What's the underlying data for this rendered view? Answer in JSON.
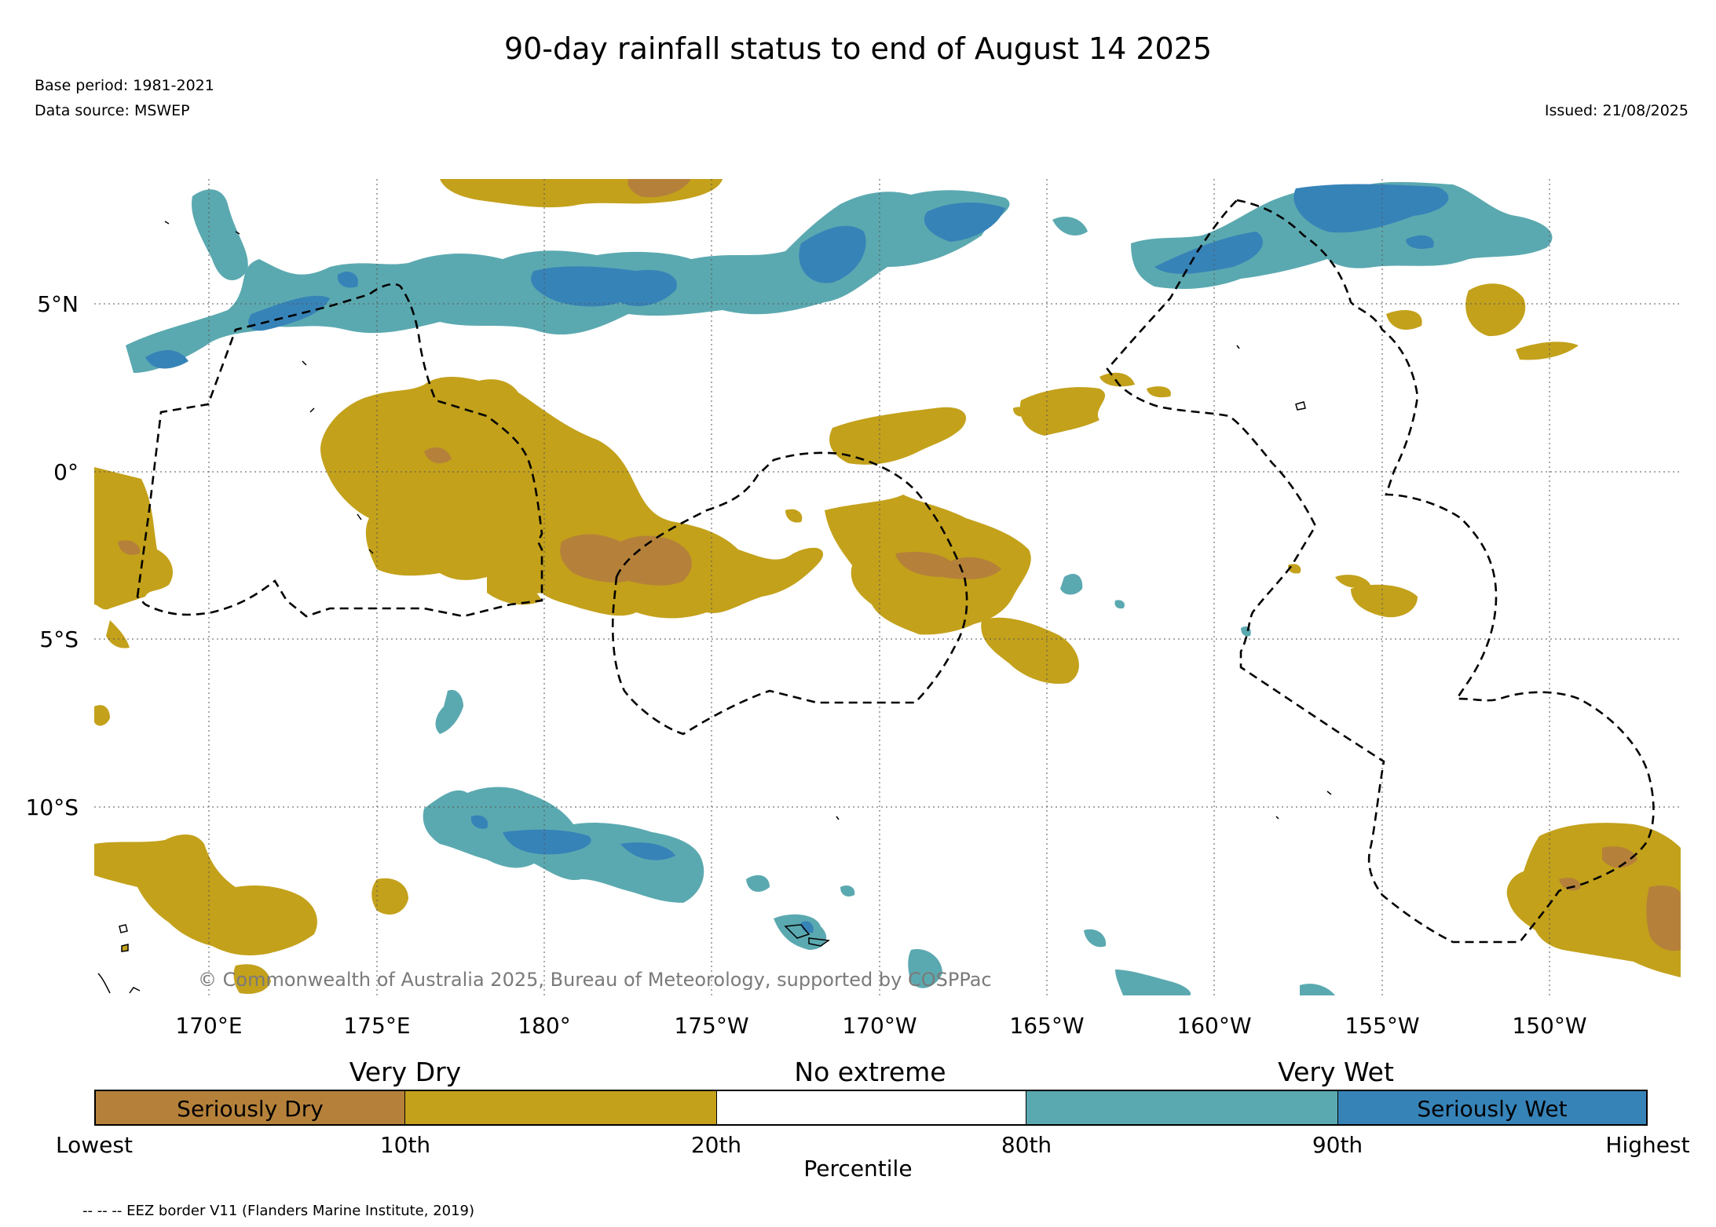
{
  "title": "90-day rainfall status to end of August 14 2025",
  "meta": {
    "base_period": "Base period: 1981-2021",
    "data_source": "Data source: MSWEP",
    "issued": "Issued: 21/08/2025"
  },
  "map": {
    "region": "central tropical Pacific",
    "lon_labels": [
      "170°E",
      "175°E",
      "180°",
      "175°W",
      "170°W",
      "165°W",
      "160°W",
      "155°W",
      "150°W"
    ],
    "lat_labels": [
      "5°N",
      "0°",
      "5°S",
      "10°S"
    ],
    "copyright": "© Commonwealth of Australia 2025, Bureau of Meteorology, supported by COSPPac",
    "colors": {
      "seriously_dry": "#b5813a",
      "very_dry": "#c3a11b",
      "very_wet": "#5ba9b0",
      "seriously_wet": "#3683b8"
    }
  },
  "legend": {
    "headings": {
      "very_dry": "Very Dry",
      "no_extreme": "No extreme",
      "very_wet": "Very Wet"
    },
    "segments": [
      {
        "label": "Seriously Dry",
        "color": "#b5813a"
      },
      {
        "label": "",
        "color": "#c3a11b"
      },
      {
        "label": "",
        "color": "#ffffff"
      },
      {
        "label": "",
        "color": "#5ba9b0"
      },
      {
        "label": "Seriously Wet",
        "color": "#3683b8"
      }
    ],
    "ticks": [
      "Lowest",
      "10th",
      "20th",
      "80th",
      "90th",
      "Highest"
    ],
    "xlabel": "Percentile"
  },
  "footer": "-- -- -- EEZ border V11 (Flanders Marine Institute, 2019)"
}
